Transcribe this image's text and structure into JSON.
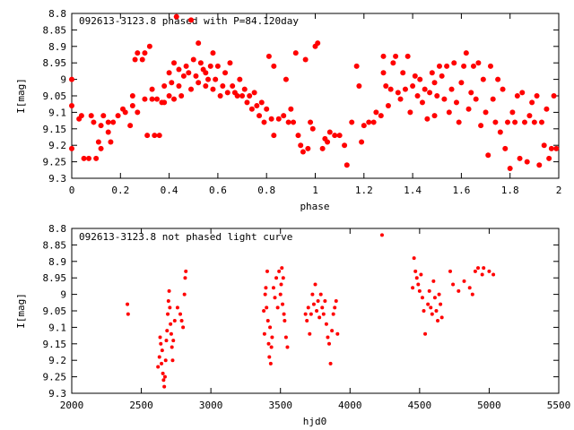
{
  "chart_data": [
    {
      "type": "scatter",
      "title": "092613-3123.8 phased with P=84.120day",
      "xlabel": "phase",
      "ylabel": "I[mag]",
      "xlim": [
        0,
        2
      ],
      "ylim": [
        8.8,
        9.3
      ],
      "y_inverted": true,
      "grid": false,
      "marker_color": "#ff0000",
      "x_ticks": [
        "0",
        "0.2",
        "0.4",
        "0.6",
        "0.8",
        "1",
        "1.2",
        "1.4",
        "1.6",
        "1.8",
        "2"
      ],
      "y_ticks": [
        "8.8",
        "8.85",
        "8.9",
        "8.95",
        "9",
        "9.05",
        "9.1",
        "9.15",
        "9.2",
        "9.25",
        "9.3"
      ],
      "points": [
        [
          0.0,
          9.0
        ],
        [
          0.0,
          9.08
        ],
        [
          0.0,
          9.21
        ],
        [
          0.03,
          9.12
        ],
        [
          0.04,
          9.11
        ],
        [
          0.05,
          9.24
        ],
        [
          0.07,
          9.24
        ],
        [
          0.08,
          9.11
        ],
        [
          0.09,
          9.13
        ],
        [
          0.1,
          9.24
        ],
        [
          0.11,
          9.19
        ],
        [
          0.12,
          9.21
        ],
        [
          0.12,
          9.14
        ],
        [
          0.13,
          9.11
        ],
        [
          0.15,
          9.13
        ],
        [
          0.15,
          9.16
        ],
        [
          0.16,
          9.19
        ],
        [
          0.17,
          9.13
        ],
        [
          0.19,
          9.11
        ],
        [
          0.21,
          9.09
        ],
        [
          0.22,
          9.1
        ],
        [
          0.24,
          9.14
        ],
        [
          0.25,
          9.05
        ],
        [
          0.25,
          9.08
        ],
        [
          0.26,
          8.94
        ],
        [
          0.27,
          8.92
        ],
        [
          0.27,
          9.1
        ],
        [
          0.29,
          8.94
        ],
        [
          0.3,
          9.06
        ],
        [
          0.3,
          8.92
        ],
        [
          0.31,
          9.17
        ],
        [
          0.32,
          8.9
        ],
        [
          0.33,
          9.03
        ],
        [
          0.33,
          9.06
        ],
        [
          0.34,
          9.17
        ],
        [
          0.35,
          9.06
        ],
        [
          0.36,
          9.17
        ],
        [
          0.37,
          9.07
        ],
        [
          0.38,
          9.02
        ],
        [
          0.38,
          9.07
        ],
        [
          0.4,
          9.05
        ],
        [
          0.4,
          8.98
        ],
        [
          0.41,
          9.01
        ],
        [
          0.42,
          9.06
        ],
        [
          0.42,
          8.95
        ],
        [
          0.43,
          8.81
        ],
        [
          0.44,
          9.02
        ],
        [
          0.44,
          8.97
        ],
        [
          0.45,
          9.05
        ],
        [
          0.46,
          8.99
        ],
        [
          0.47,
          8.96
        ],
        [
          0.48,
          8.98
        ],
        [
          0.49,
          8.82
        ],
        [
          0.49,
          9.03
        ],
        [
          0.5,
          8.94
        ],
        [
          0.51,
          8.99
        ],
        [
          0.52,
          9.01
        ],
        [
          0.52,
          8.89
        ],
        [
          0.53,
          8.95
        ],
        [
          0.54,
          8.97
        ],
        [
          0.55,
          9.02
        ],
        [
          0.55,
          8.98
        ],
        [
          0.56,
          9.0
        ],
        [
          0.57,
          8.96
        ],
        [
          0.58,
          9.03
        ],
        [
          0.58,
          8.92
        ],
        [
          0.59,
          9.0
        ],
        [
          0.6,
          8.96
        ],
        [
          0.61,
          9.05
        ],
        [
          0.62,
          9.02
        ],
        [
          0.63,
          8.98
        ],
        [
          0.64,
          9.04
        ],
        [
          0.65,
          8.95
        ],
        [
          0.66,
          9.02
        ],
        [
          0.67,
          9.04
        ],
        [
          0.68,
          9.05
        ],
        [
          0.69,
          9.0
        ],
        [
          0.7,
          9.05
        ],
        [
          0.71,
          9.03
        ],
        [
          0.72,
          9.07
        ],
        [
          0.73,
          9.05
        ],
        [
          0.74,
          9.09
        ],
        [
          0.75,
          9.04
        ],
        [
          0.76,
          9.08
        ],
        [
          0.77,
          9.11
        ],
        [
          0.78,
          9.07
        ],
        [
          0.79,
          9.13
        ],
        [
          0.8,
          9.09
        ],
        [
          0.81,
          8.93
        ],
        [
          0.82,
          9.12
        ],
        [
          0.83,
          8.96
        ],
        [
          0.83,
          9.17
        ],
        [
          0.85,
          9.12
        ],
        [
          0.87,
          9.11
        ],
        [
          0.88,
          9.0
        ],
        [
          0.89,
          9.13
        ],
        [
          0.9,
          9.09
        ],
        [
          0.91,
          9.13
        ],
        [
          0.92,
          8.92
        ],
        [
          0.93,
          9.17
        ],
        [
          0.94,
          9.2
        ],
        [
          0.95,
          9.22
        ],
        [
          0.96,
          8.94
        ],
        [
          0.97,
          9.21
        ],
        [
          0.98,
          9.13
        ],
        [
          0.99,
          9.15
        ],
        [
          1.0,
          8.9
        ],
        [
          1.01,
          8.89
        ],
        [
          1.03,
          9.21
        ],
        [
          1.04,
          9.18
        ],
        [
          1.05,
          9.19
        ],
        [
          1.06,
          9.16
        ],
        [
          1.08,
          9.17
        ],
        [
          1.1,
          9.17
        ],
        [
          1.12,
          9.2
        ],
        [
          1.13,
          9.26
        ],
        [
          1.15,
          9.13
        ],
        [
          1.17,
          8.96
        ],
        [
          1.18,
          9.02
        ],
        [
          1.19,
          9.19
        ],
        [
          1.2,
          9.14
        ],
        [
          1.22,
          9.13
        ],
        [
          1.24,
          9.13
        ],
        [
          1.25,
          9.1
        ],
        [
          1.27,
          9.11
        ],
        [
          1.28,
          8.98
        ],
        [
          1.28,
          8.93
        ],
        [
          1.29,
          9.02
        ],
        [
          1.3,
          9.08
        ],
        [
          1.31,
          9.03
        ],
        [
          1.32,
          8.95
        ],
        [
          1.33,
          8.93
        ],
        [
          1.34,
          9.04
        ],
        [
          1.35,
          9.06
        ],
        [
          1.36,
          8.98
        ],
        [
          1.37,
          9.03
        ],
        [
          1.38,
          8.93
        ],
        [
          1.39,
          9.1
        ],
        [
          1.4,
          9.02
        ],
        [
          1.41,
          8.99
        ],
        [
          1.42,
          9.05
        ],
        [
          1.43,
          9.0
        ],
        [
          1.44,
          9.07
        ],
        [
          1.45,
          9.03
        ],
        [
          1.46,
          9.12
        ],
        [
          1.47,
          9.04
        ],
        [
          1.48,
          8.98
        ],
        [
          1.49,
          9.01
        ],
        [
          1.49,
          9.11
        ],
        [
          1.5,
          9.05
        ],
        [
          1.51,
          8.96
        ],
        [
          1.52,
          8.99
        ],
        [
          1.53,
          9.06
        ],
        [
          1.54,
          8.96
        ],
        [
          1.55,
          9.1
        ],
        [
          1.56,
          9.03
        ],
        [
          1.57,
          8.95
        ],
        [
          1.58,
          9.07
        ],
        [
          1.59,
          9.13
        ],
        [
          1.6,
          9.01
        ],
        [
          1.61,
          8.96
        ],
        [
          1.62,
          8.92
        ],
        [
          1.63,
          9.09
        ],
        [
          1.64,
          9.04
        ],
        [
          1.65,
          8.96
        ],
        [
          1.66,
          9.06
        ],
        [
          1.67,
          8.95
        ],
        [
          1.68,
          9.14
        ],
        [
          1.69,
          9.0
        ],
        [
          1.7,
          9.1
        ],
        [
          1.71,
          9.23
        ],
        [
          1.72,
          8.96
        ],
        [
          1.73,
          9.06
        ],
        [
          1.74,
          9.13
        ],
        [
          1.75,
          9.0
        ],
        [
          1.76,
          9.16
        ],
        [
          1.77,
          9.03
        ],
        [
          1.78,
          9.21
        ],
        [
          1.79,
          9.13
        ],
        [
          1.8,
          9.27
        ],
        [
          1.81,
          9.1
        ],
        [
          1.82,
          9.13
        ],
        [
          1.83,
          9.05
        ],
        [
          1.84,
          9.24
        ],
        [
          1.85,
          9.04
        ],
        [
          1.86,
          9.13
        ],
        [
          1.87,
          9.25
        ],
        [
          1.88,
          9.11
        ],
        [
          1.89,
          9.07
        ],
        [
          1.9,
          9.13
        ],
        [
          1.91,
          9.05
        ],
        [
          1.92,
          9.26
        ],
        [
          1.93,
          9.13
        ],
        [
          1.94,
          9.2
        ],
        [
          1.95,
          9.09
        ],
        [
          1.96,
          9.24
        ],
        [
          1.97,
          9.21
        ],
        [
          1.98,
          9.05
        ],
        [
          1.99,
          9.21
        ]
      ]
    },
    {
      "type": "scatter",
      "title": "092613-3123.8 not phased light curve",
      "xlabel": "hjd0",
      "ylabel": "I[mag]",
      "xlim": [
        2000,
        5500
      ],
      "ylim": [
        8.8,
        9.3
      ],
      "y_inverted": true,
      "grid": false,
      "marker_color": "#ff0000",
      "x_ticks": [
        "2000",
        "2500",
        "3000",
        "3500",
        "4000",
        "4500",
        "5000",
        "5500"
      ],
      "y_ticks": [
        "8.8",
        "8.85",
        "8.9",
        "8.95",
        "9",
        "9.05",
        "9.1",
        "9.15",
        "9.2",
        "9.25",
        "9.3"
      ],
      "points": [
        [
          2400,
          9.03
        ],
        [
          2405,
          9.06
        ],
        [
          2620,
          9.22
        ],
        [
          2630,
          9.19
        ],
        [
          2635,
          9.13
        ],
        [
          2640,
          9.15
        ],
        [
          2645,
          9.21
        ],
        [
          2650,
          9.17
        ],
        [
          2655,
          9.24
        ],
        [
          2660,
          9.26
        ],
        [
          2665,
          9.28
        ],
        [
          2670,
          9.25
        ],
        [
          2675,
          9.2
        ],
        [
          2680,
          9.14
        ],
        [
          2685,
          9.11
        ],
        [
          2690,
          9.06
        ],
        [
          2695,
          9.02
        ],
        [
          2700,
          8.99
        ],
        [
          2705,
          9.04
        ],
        [
          2710,
          9.09
        ],
        [
          2715,
          9.12
        ],
        [
          2720,
          9.16
        ],
        [
          2725,
          9.2
        ],
        [
          2730,
          9.14
        ],
        [
          2740,
          9.08
        ],
        [
          2760,
          9.04
        ],
        [
          2780,
          9.06
        ],
        [
          2790,
          9.08
        ],
        [
          2800,
          9.1
        ],
        [
          2810,
          9.0
        ],
        [
          2815,
          8.95
        ],
        [
          2820,
          8.93
        ],
        [
          3380,
          9.05
        ],
        [
          3385,
          9.12
        ],
        [
          3390,
          9.0
        ],
        [
          3395,
          8.98
        ],
        [
          3400,
          9.04
        ],
        [
          3405,
          8.93
        ],
        [
          3410,
          9.08
        ],
        [
          3415,
          9.15
        ],
        [
          3420,
          9.19
        ],
        [
          3425,
          9.1
        ],
        [
          3430,
          9.21
        ],
        [
          3435,
          9.16
        ],
        [
          3440,
          9.13
        ],
        [
          3450,
          8.98
        ],
        [
          3460,
          9.01
        ],
        [
          3470,
          8.95
        ],
        [
          3480,
          9.04
        ],
        [
          3490,
          8.93
        ],
        [
          3500,
          9.0
        ],
        [
          3505,
          8.97
        ],
        [
          3510,
          8.92
        ],
        [
          3515,
          9.03
        ],
        [
          3520,
          8.95
        ],
        [
          3525,
          9.06
        ],
        [
          3530,
          9.08
        ],
        [
          3540,
          9.13
        ],
        [
          3550,
          9.16
        ],
        [
          3680,
          9.06
        ],
        [
          3690,
          9.08
        ],
        [
          3700,
          9.04
        ],
        [
          3710,
          9.12
        ],
        [
          3720,
          9.06
        ],
        [
          3730,
          9.0
        ],
        [
          3740,
          9.03
        ],
        [
          3750,
          8.97
        ],
        [
          3760,
          9.05
        ],
        [
          3770,
          9.02
        ],
        [
          3780,
          9.07
        ],
        [
          3790,
          9.0
        ],
        [
          3800,
          9.04
        ],
        [
          3810,
          9.06
        ],
        [
          3820,
          9.02
        ],
        [
          3830,
          9.09
        ],
        [
          3840,
          9.13
        ],
        [
          3850,
          9.15
        ],
        [
          3860,
          9.21
        ],
        [
          3870,
          9.11
        ],
        [
          3880,
          9.06
        ],
        [
          3890,
          9.04
        ],
        [
          3900,
          9.02
        ],
        [
          3910,
          9.12
        ],
        [
          4230,
          8.82
        ],
        [
          4450,
          8.98
        ],
        [
          4460,
          8.89
        ],
        [
          4470,
          8.93
        ],
        [
          4480,
          8.95
        ],
        [
          4490,
          8.97
        ],
        [
          4500,
          8.99
        ],
        [
          4510,
          8.94
        ],
        [
          4520,
          9.01
        ],
        [
          4530,
          9.05
        ],
        [
          4540,
          9.12
        ],
        [
          4560,
          9.03
        ],
        [
          4570,
          8.99
        ],
        [
          4580,
          9.04
        ],
        [
          4590,
          9.06
        ],
        [
          4600,
          8.96
        ],
        [
          4610,
          9.01
        ],
        [
          4620,
          9.05
        ],
        [
          4630,
          9.08
        ],
        [
          4640,
          9.0
        ],
        [
          4650,
          9.03
        ],
        [
          4660,
          9.07
        ],
        [
          4720,
          8.93
        ],
        [
          4740,
          8.97
        ],
        [
          4780,
          8.99
        ],
        [
          4820,
          8.96
        ],
        [
          4860,
          8.98
        ],
        [
          4880,
          9.0
        ],
        [
          4900,
          8.93
        ],
        [
          4920,
          8.92
        ],
        [
          4950,
          8.94
        ],
        [
          4960,
          8.92
        ],
        [
          5000,
          8.93
        ],
        [
          5030,
          8.94
        ]
      ]
    }
  ]
}
